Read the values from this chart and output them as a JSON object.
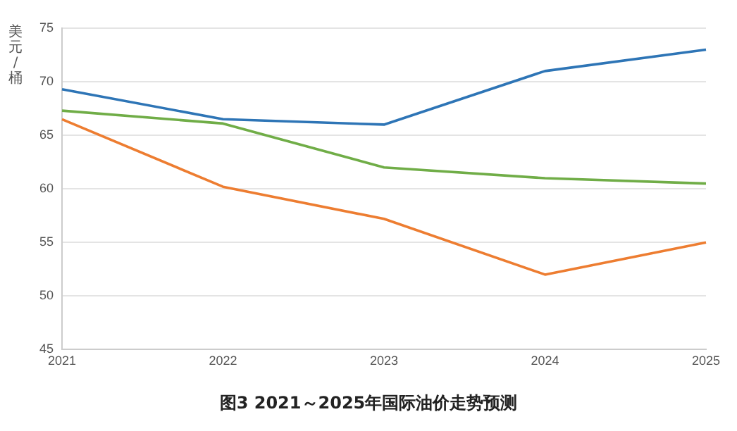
{
  "chart_data": {
    "type": "line",
    "title": "图3  2021～2025年国际油价走势预测",
    "ylabel": "美元/桶",
    "categories": [
      "2021",
      "2022",
      "2023",
      "2024",
      "2025"
    ],
    "series": [
      {
        "color": "#70ad47",
        "values": [
          67.3,
          66.1,
          62.0,
          61.0,
          60.5
        ]
      },
      {
        "color": "#2e75b6",
        "values": [
          69.3,
          66.5,
          66.0,
          71.0,
          73.0
        ]
      },
      {
        "color": "#ed7d31",
        "values": [
          66.5,
          60.2,
          57.2,
          52.0,
          55.0
        ]
      }
    ],
    "ylim": [
      45,
      75
    ],
    "yticks": [
      45,
      50,
      55,
      60,
      65,
      70,
      75
    ],
    "grid": "y",
    "legend": false,
    "marker": "none",
    "line_style": "solid"
  }
}
